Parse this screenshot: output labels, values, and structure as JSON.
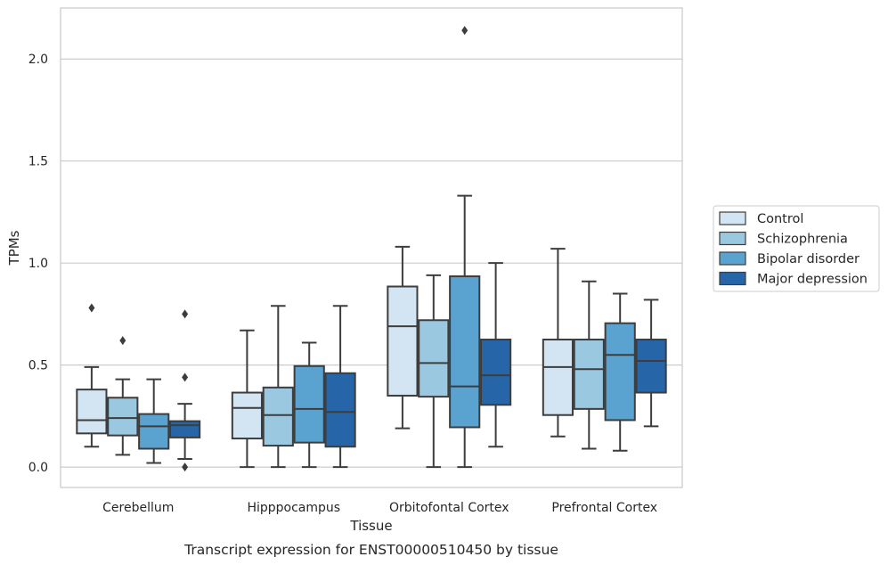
{
  "chart_data": {
    "type": "box",
    "title": "",
    "xlabel": "Tissue",
    "ylabel": "TPMs",
    "caption": "Transcript expression for ENST00000510450 by tissue",
    "ylim": [
      -0.1,
      2.25
    ],
    "yticks": [
      0.0,
      0.5,
      1.0,
      1.5,
      2.0
    ],
    "ytick_labels": [
      "0.0",
      "0.5",
      "1.0",
      "1.5",
      "2.0"
    ],
    "grid": "horizontal",
    "legend_position": "right",
    "categories": [
      "Cerebellum",
      "Hipppocampus",
      "Orbitofontal Cortex",
      "Prefrontal Cortex"
    ],
    "series": [
      {
        "name": "Control",
        "color": "#d3e4f3",
        "boxes": [
          {
            "whisker_low": 0.1,
            "q1": 0.165,
            "median": 0.23,
            "q3": 0.38,
            "whisker_high": 0.49,
            "outliers": [
              0.78
            ]
          },
          {
            "whisker_low": 0.0,
            "q1": 0.14,
            "median": 0.29,
            "q3": 0.365,
            "whisker_high": 0.67,
            "outliers": []
          },
          {
            "whisker_low": 0.19,
            "q1": 0.35,
            "median": 0.69,
            "q3": 0.885,
            "whisker_high": 1.08,
            "outliers": []
          },
          {
            "whisker_low": 0.15,
            "q1": 0.255,
            "median": 0.49,
            "q3": 0.625,
            "whisker_high": 1.07,
            "outliers": []
          }
        ]
      },
      {
        "name": "Schizophrenia",
        "color": "#9ac8e0",
        "boxes": [
          {
            "whisker_low": 0.06,
            "q1": 0.155,
            "median": 0.24,
            "q3": 0.34,
            "whisker_high": 0.43,
            "outliers": [
              0.62
            ]
          },
          {
            "whisker_low": 0.0,
            "q1": 0.105,
            "median": 0.255,
            "q3": 0.39,
            "whisker_high": 0.79,
            "outliers": []
          },
          {
            "whisker_low": 0.0,
            "q1": 0.345,
            "median": 0.51,
            "q3": 0.72,
            "whisker_high": 0.94,
            "outliers": []
          },
          {
            "whisker_low": 0.09,
            "q1": 0.285,
            "median": 0.48,
            "q3": 0.625,
            "whisker_high": 0.91,
            "outliers": []
          }
        ]
      },
      {
        "name": "Bipolar disorder",
        "color": "#5aa2cf",
        "boxes": [
          {
            "whisker_low": 0.02,
            "q1": 0.09,
            "median": 0.2,
            "q3": 0.26,
            "whisker_high": 0.43,
            "outliers": []
          },
          {
            "whisker_low": 0.0,
            "q1": 0.12,
            "median": 0.285,
            "q3": 0.495,
            "whisker_high": 0.61,
            "outliers": []
          },
          {
            "whisker_low": 0.0,
            "q1": 0.195,
            "median": 0.395,
            "q3": 0.935,
            "whisker_high": 1.33,
            "outliers": [
              2.14
            ]
          },
          {
            "whisker_low": 0.08,
            "q1": 0.23,
            "median": 0.55,
            "q3": 0.705,
            "whisker_high": 0.85,
            "outliers": []
          }
        ]
      },
      {
        "name": "Major depression",
        "color": "#2565a8",
        "boxes": [
          {
            "whisker_low": 0.04,
            "q1": 0.145,
            "median": 0.205,
            "q3": 0.225,
            "whisker_high": 0.31,
            "outliers": [
              0.0,
              0.44,
              0.75
            ]
          },
          {
            "whisker_low": 0.0,
            "q1": 0.1,
            "median": 0.27,
            "q3": 0.46,
            "whisker_high": 0.79,
            "outliers": []
          },
          {
            "whisker_low": 0.1,
            "q1": 0.305,
            "median": 0.45,
            "q3": 0.625,
            "whisker_high": 1.0,
            "outliers": []
          },
          {
            "whisker_low": 0.2,
            "q1": 0.365,
            "median": 0.52,
            "q3": 0.625,
            "whisker_high": 0.82,
            "outliers": []
          }
        ]
      }
    ]
  }
}
